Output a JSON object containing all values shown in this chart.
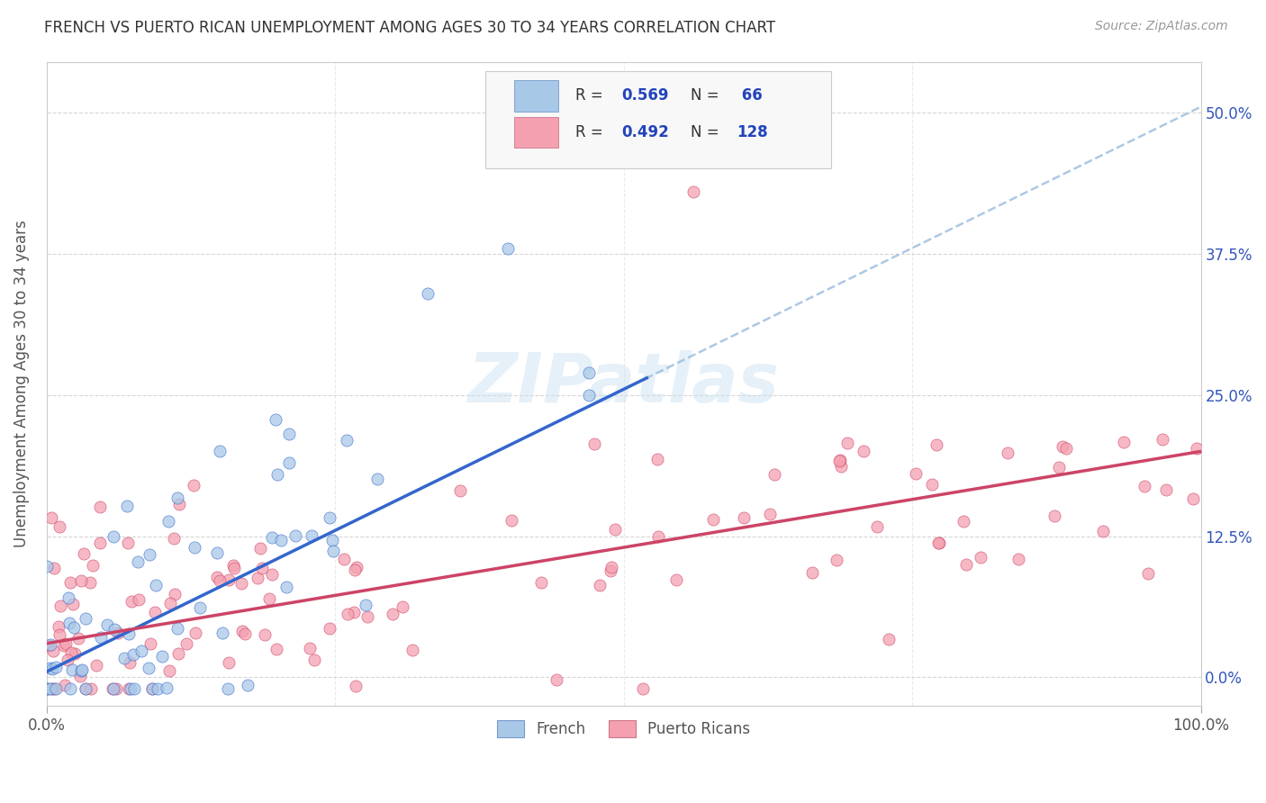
{
  "title": "FRENCH VS PUERTO RICAN UNEMPLOYMENT AMONG AGES 30 TO 34 YEARS CORRELATION CHART",
  "source": "Source: ZipAtlas.com",
  "ylabel": "Unemployment Among Ages 30 to 34 years",
  "xlim": [
    0.0,
    1.0
  ],
  "ylim": [
    -0.025,
    0.545
  ],
  "french_color": "#a8c8e8",
  "french_line_color": "#3366cc",
  "french_dash_color": "#99bbdd",
  "puerto_rican_color": "#f4a0b0",
  "puerto_rican_line_color": "#cc4466",
  "french_R": 0.569,
  "french_N": 66,
  "puerto_rican_R": 0.492,
  "puerto_rican_N": 128,
  "watermark": "ZIPatlas",
  "background_color": "#ffffff",
  "grid_color": "#cccccc",
  "french_line_intercept": 0.005,
  "french_line_slope": 0.5,
  "french_line_xmax": 0.52,
  "french_dash_intercept": 0.005,
  "french_dash_slope": 0.5,
  "french_dash_xstart": 0.5,
  "puerto_rican_line_intercept": 0.03,
  "puerto_rican_line_slope": 0.17,
  "ytick_vals": [
    0.0,
    0.125,
    0.25,
    0.375,
    0.5
  ],
  "ytick_labels": [
    "0.0%",
    "12.5%",
    "25.0%",
    "37.5%",
    "50.0%"
  ],
  "xtick_vals": [
    0.0,
    1.0
  ],
  "xtick_labels": [
    "0.0%",
    "100.0%"
  ],
  "legend_label_french": "French",
  "legend_label_pr": "Puerto Ricans",
  "title_fontsize": 12,
  "axis_fontsize": 12,
  "tick_fontsize": 12
}
